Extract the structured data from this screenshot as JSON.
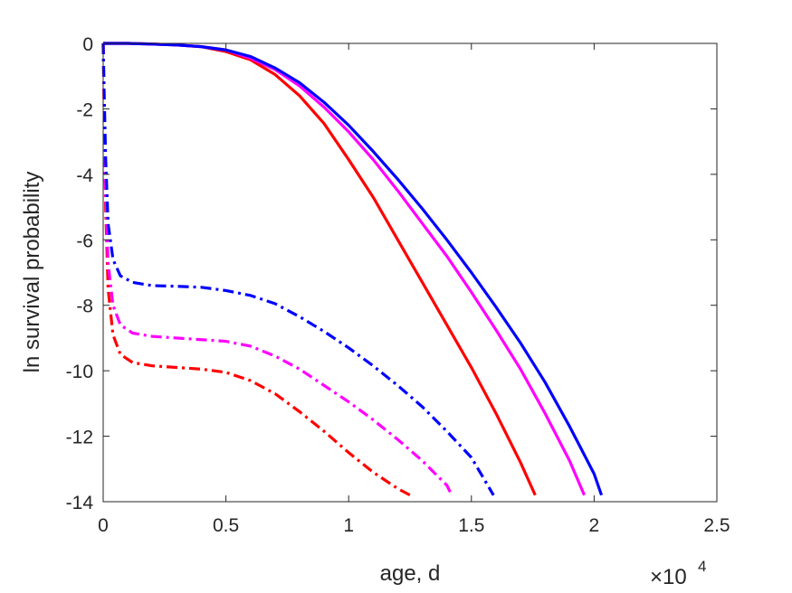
{
  "chart_data": {
    "type": "line",
    "xlabel": "age, d",
    "ylabel": "ln survival probability",
    "x_exponent_label": {
      "base": "×10",
      "exponent": "4"
    },
    "xlim": [
      0,
      25000
    ],
    "ylim": [
      -14,
      0
    ],
    "x_ticks": [
      0,
      5000,
      10000,
      15000,
      20000,
      25000
    ],
    "x_tick_labels": [
      "0",
      "0.5",
      "1",
      "1.5",
      "2",
      "2.5"
    ],
    "y_ticks": [
      0,
      -2,
      -4,
      -6,
      -8,
      -10,
      -12,
      -14
    ],
    "y_tick_labels": [
      "0",
      "-2",
      "-4",
      "-6",
      "-8",
      "-10",
      "-12",
      "-14"
    ],
    "grid": false,
    "series": [
      {
        "color": "#ff0000",
        "style": "solid",
        "points": [
          [
            0,
            0
          ],
          [
            1000,
            0
          ],
          [
            2000,
            -0.02
          ],
          [
            3000,
            -0.05
          ],
          [
            4000,
            -0.1
          ],
          [
            5000,
            -0.25
          ],
          [
            6000,
            -0.5
          ],
          [
            7000,
            -0.95
          ],
          [
            8000,
            -1.6
          ],
          [
            9000,
            -2.45
          ],
          [
            10000,
            -3.55
          ],
          [
            11000,
            -4.7
          ],
          [
            12000,
            -6.0
          ],
          [
            13000,
            -7.3
          ],
          [
            14000,
            -8.6
          ],
          [
            15000,
            -9.9
          ],
          [
            16000,
            -11.3
          ],
          [
            17000,
            -12.8
          ],
          [
            17600,
            -13.8
          ]
        ]
      },
      {
        "color": "#ff00ff",
        "style": "solid",
        "points": [
          [
            0,
            0
          ],
          [
            1000,
            0
          ],
          [
            2000,
            -0.02
          ],
          [
            3000,
            -0.05
          ],
          [
            4000,
            -0.1
          ],
          [
            5000,
            -0.2
          ],
          [
            6000,
            -0.45
          ],
          [
            7000,
            -0.8
          ],
          [
            8000,
            -1.3
          ],
          [
            9000,
            -1.95
          ],
          [
            10000,
            -2.7
          ],
          [
            11000,
            -3.55
          ],
          [
            12000,
            -4.5
          ],
          [
            13000,
            -5.5
          ],
          [
            14000,
            -6.5
          ],
          [
            15000,
            -7.6
          ],
          [
            16000,
            -8.75
          ],
          [
            17000,
            -9.95
          ],
          [
            18000,
            -11.3
          ],
          [
            19000,
            -12.75
          ],
          [
            19600,
            -13.8
          ]
        ]
      },
      {
        "color": "#0000ff",
        "style": "solid",
        "points": [
          [
            0,
            0
          ],
          [
            1000,
            0
          ],
          [
            2000,
            -0.02
          ],
          [
            3000,
            -0.05
          ],
          [
            4000,
            -0.1
          ],
          [
            5000,
            -0.2
          ],
          [
            6000,
            -0.4
          ],
          [
            7000,
            -0.75
          ],
          [
            8000,
            -1.2
          ],
          [
            9000,
            -1.8
          ],
          [
            10000,
            -2.5
          ],
          [
            11000,
            -3.3
          ],
          [
            12000,
            -4.15
          ],
          [
            13000,
            -5.05
          ],
          [
            14000,
            -6.0
          ],
          [
            15000,
            -7.0
          ],
          [
            16000,
            -8.05
          ],
          [
            17000,
            -9.15
          ],
          [
            18000,
            -10.35
          ],
          [
            19000,
            -11.7
          ],
          [
            20000,
            -13.15
          ],
          [
            20300,
            -13.8
          ]
        ]
      },
      {
        "color": "#ff0000",
        "style": "dashdot",
        "points": [
          [
            0,
            0
          ],
          [
            40,
            -2
          ],
          [
            100,
            -5
          ],
          [
            200,
            -7.5
          ],
          [
            400,
            -8.9
          ],
          [
            700,
            -9.5
          ],
          [
            1200,
            -9.75
          ],
          [
            2000,
            -9.85
          ],
          [
            3000,
            -9.9
          ],
          [
            4000,
            -9.95
          ],
          [
            5000,
            -10.05
          ],
          [
            6000,
            -10.3
          ],
          [
            7000,
            -10.7
          ],
          [
            8000,
            -11.25
          ],
          [
            9000,
            -11.85
          ],
          [
            10000,
            -12.5
          ],
          [
            11000,
            -13.1
          ],
          [
            12000,
            -13.6
          ],
          [
            12500,
            -13.8
          ]
        ]
      },
      {
        "color": "#ff00ff",
        "style": "dashdot",
        "points": [
          [
            0,
            0
          ],
          [
            40,
            -2
          ],
          [
            100,
            -4.5
          ],
          [
            200,
            -6.7
          ],
          [
            400,
            -8.0
          ],
          [
            700,
            -8.6
          ],
          [
            1200,
            -8.85
          ],
          [
            2000,
            -8.95
          ],
          [
            3000,
            -9.0
          ],
          [
            4000,
            -9.05
          ],
          [
            5000,
            -9.1
          ],
          [
            6000,
            -9.25
          ],
          [
            7000,
            -9.55
          ],
          [
            8000,
            -9.95
          ],
          [
            9000,
            -10.45
          ],
          [
            10000,
            -10.95
          ],
          [
            11000,
            -11.5
          ],
          [
            12000,
            -12.1
          ],
          [
            13000,
            -12.75
          ],
          [
            14000,
            -13.5
          ],
          [
            14200,
            -13.8
          ]
        ]
      },
      {
        "color": "#0000ff",
        "style": "dashdot",
        "points": [
          [
            0,
            0
          ],
          [
            40,
            -1.5
          ],
          [
            100,
            -3.5
          ],
          [
            200,
            -5.5
          ],
          [
            400,
            -6.6
          ],
          [
            700,
            -7.1
          ],
          [
            1200,
            -7.3
          ],
          [
            2000,
            -7.4
          ],
          [
            3000,
            -7.42
          ],
          [
            4000,
            -7.45
          ],
          [
            5000,
            -7.55
          ],
          [
            6000,
            -7.7
          ],
          [
            7000,
            -7.95
          ],
          [
            8000,
            -8.35
          ],
          [
            9000,
            -8.8
          ],
          [
            10000,
            -9.3
          ],
          [
            11000,
            -9.85
          ],
          [
            12000,
            -10.45
          ],
          [
            13000,
            -11.1
          ],
          [
            14000,
            -11.85
          ],
          [
            15000,
            -12.65
          ],
          [
            15900,
            -13.8
          ]
        ]
      }
    ]
  }
}
